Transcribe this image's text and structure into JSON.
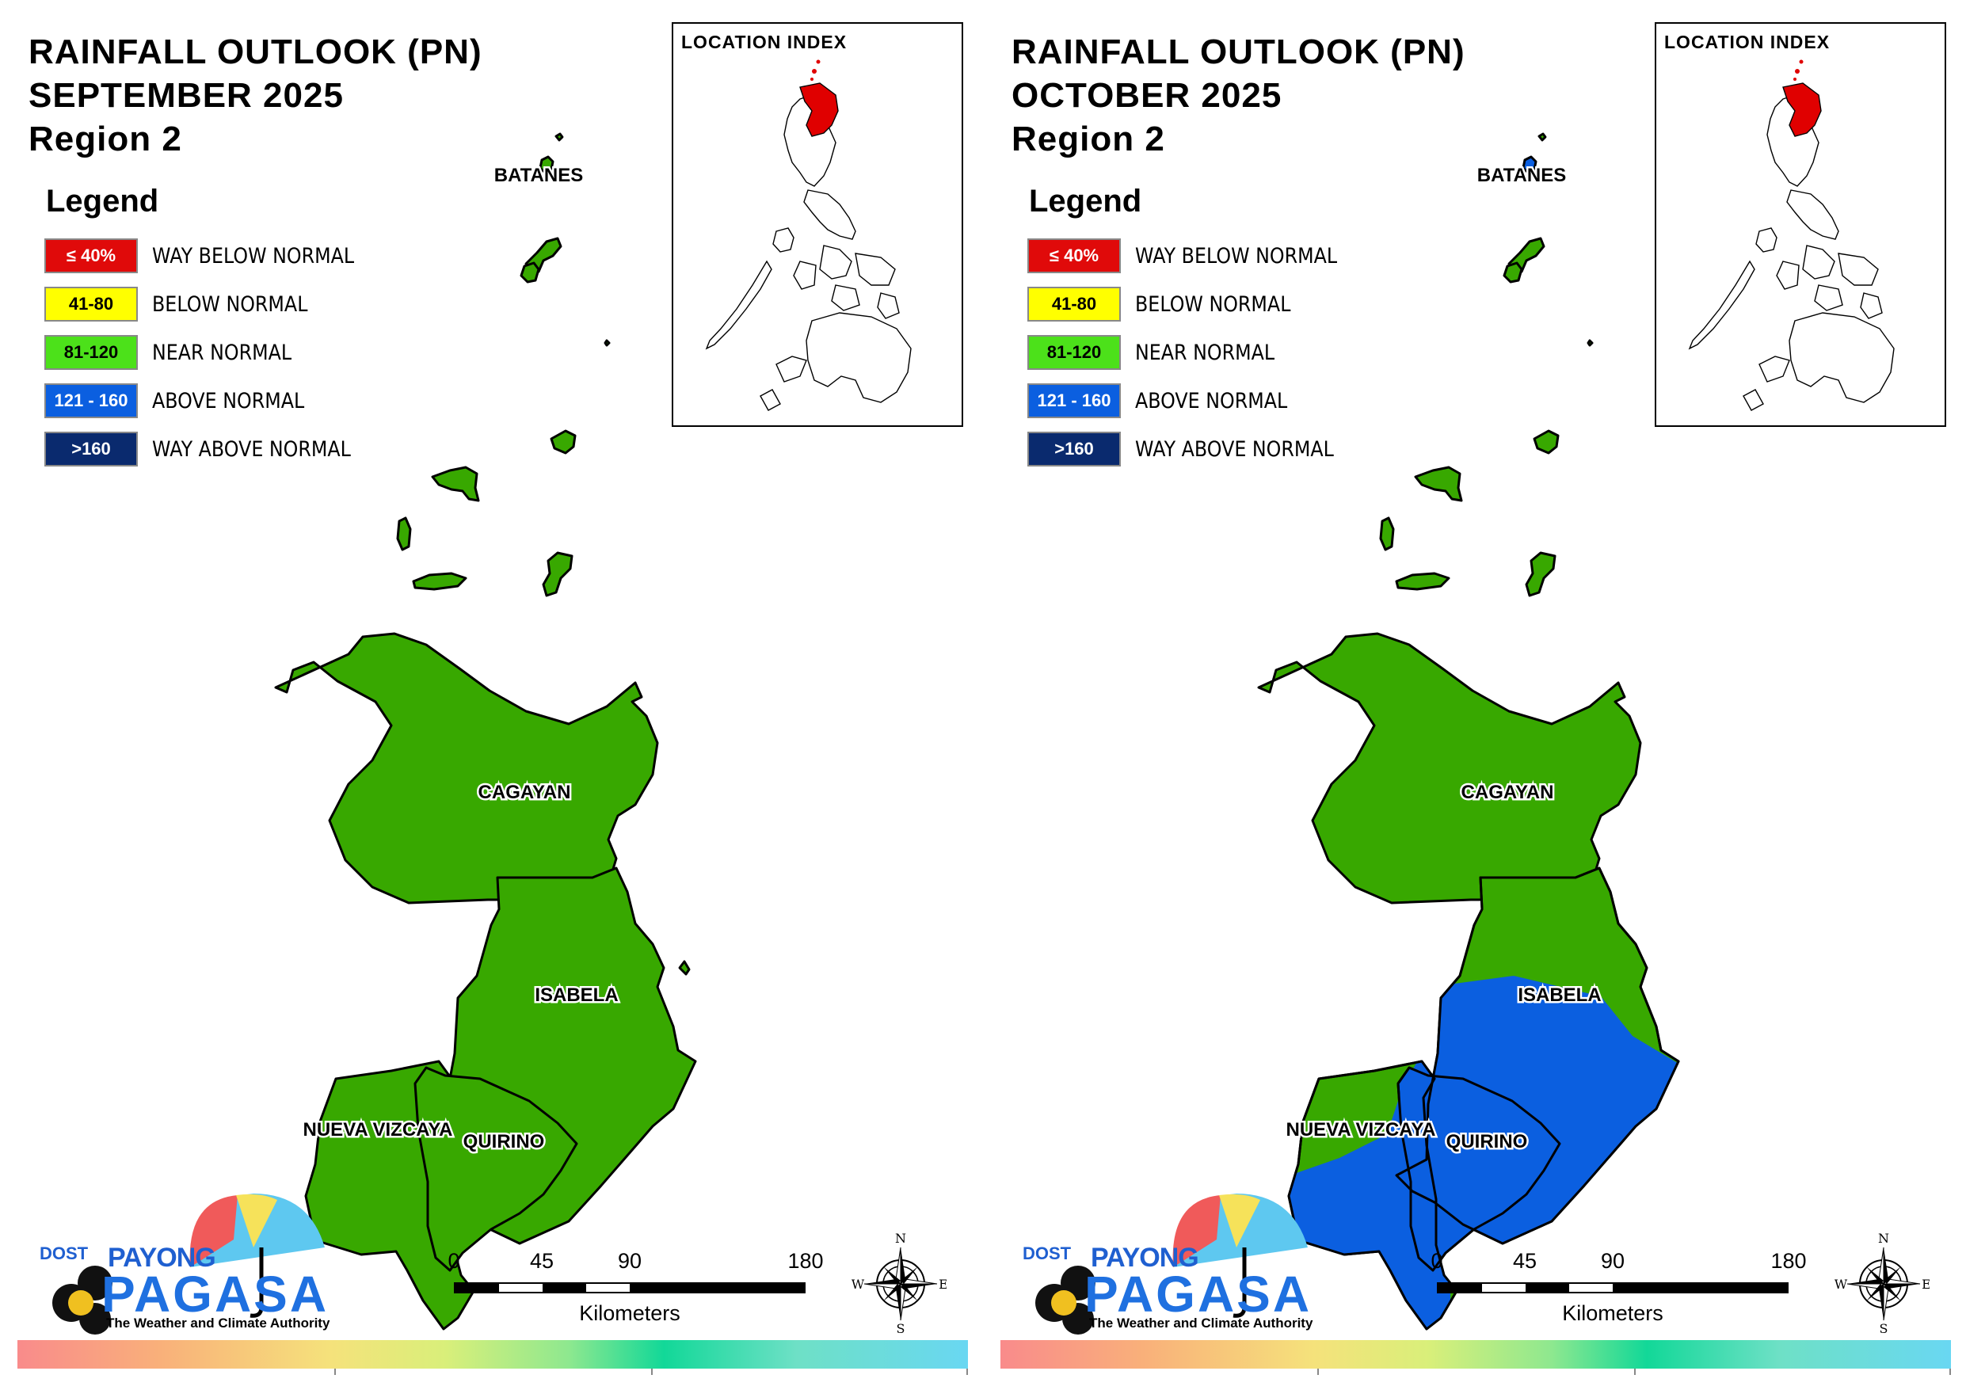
{
  "legend": {
    "title": "Legend",
    "items": [
      {
        "range": "≤ 40%",
        "label": "WAY BELOW NORMAL",
        "color": "#e00a0a",
        "text_color": "#ffffff"
      },
      {
        "range": "41-80",
        "label": "BELOW NORMAL",
        "color": "#ffff00",
        "text_color": "#000000"
      },
      {
        "range": "81-120",
        "label": "NEAR NORMAL",
        "color": "#4ce11a",
        "text_color": "#000000"
      },
      {
        "range": "121 - 160",
        "label": "ABOVE NORMAL",
        "color": "#0b5fe0",
        "text_color": "#ffffff"
      },
      {
        "range": ">160",
        "label": "WAY ABOVE NORMAL",
        "color": "#0a2a6e",
        "text_color": "#ffffff"
      }
    ]
  },
  "location_index": {
    "title": "LOCATION INDEX",
    "highlight_color": "#e00000"
  },
  "province_labels": {
    "batanes": "BATANES",
    "cagayan": "CAGAYAN",
    "isabela": "ISABELA",
    "nueva_vizcaya": "NUEVA VIZCAYA",
    "quirino": "QUIRINO"
  },
  "panels": [
    {
      "title_line1": "RAINFALL OUTLOOK (PN)",
      "title_line2": "SEPTEMBER 2025",
      "title_line3": "Region 2",
      "provinces": {
        "batanes": "NEAR NORMAL",
        "cagayan": "NEAR NORMAL",
        "isabela": "NEAR NORMAL",
        "nueva_vizcaya": "NEAR NORMAL",
        "quirino": "NEAR NORMAL"
      }
    },
    {
      "title_line1": "RAINFALL OUTLOOK (PN)",
      "title_line2": "OCTOBER 2025",
      "title_line3": "Region 2",
      "provinces": {
        "batanes": "ABOVE NORMAL",
        "cagayan": "NEAR NORMAL",
        "isabela": "NEAR NORMAL / ABOVE NORMAL (south)",
        "nueva_vizcaya": "NEAR NORMAL (west) / ABOVE NORMAL (east)",
        "quirino": "ABOVE NORMAL"
      }
    }
  ],
  "map_colors": {
    "near_normal": "#38a800",
    "above_normal": "#0b5fe0",
    "outline": "#000000"
  },
  "scale": {
    "ticks": [
      "0",
      "45",
      "90",
      "180"
    ],
    "unit": "Kilometers"
  },
  "compass": {
    "n": "N",
    "e": "E",
    "s": "S",
    "w": "W"
  },
  "logo": {
    "dost": "DOST",
    "payong": "PAYONG",
    "pagasa": "PAGASA",
    "tagline": "The Weather and Climate Authority"
  }
}
